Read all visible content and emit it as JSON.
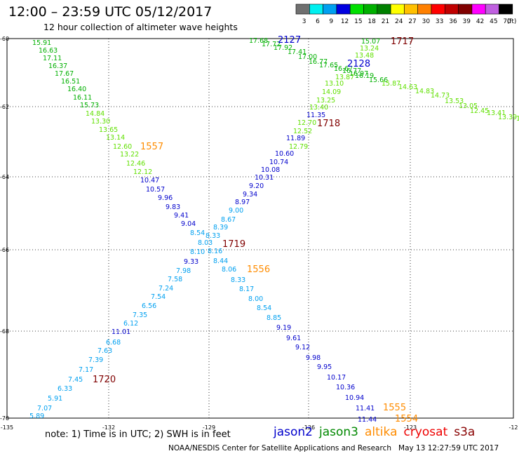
{
  "header": {
    "title": "12:00 – 23:59 UTC 05/12/2017",
    "subtitle": "12 hour collection of altimeter wave heights"
  },
  "colorscale": {
    "unit": "(ft)",
    "bins": [
      {
        "label": "3",
        "color": "#707070"
      },
      {
        "label": "6",
        "color": "#00f0f0"
      },
      {
        "label": "9",
        "color": "#00a0f0"
      },
      {
        "label": "12",
        "color": "#0000e0"
      },
      {
        "label": "15",
        "color": "#00e000"
      },
      {
        "label": "18",
        "color": "#00b000"
      },
      {
        "label": "21",
        "color": "#008000"
      },
      {
        "label": "24",
        "color": "#ffff00"
      },
      {
        "label": "27",
        "color": "#ffc000"
      },
      {
        "label": "30",
        "color": "#ff8000"
      },
      {
        "label": "33",
        "color": "#ff0000"
      },
      {
        "label": "36",
        "color": "#c00000"
      },
      {
        "label": "39",
        "color": "#800000"
      },
      {
        "label": "42",
        "color": "#ff00ff"
      },
      {
        "label": "45",
        "color": "#c060e0"
      },
      {
        "label": "70",
        "color": "#000000"
      }
    ]
  },
  "map": {
    "x_ticks": [
      "-135",
      "-132",
      "-129",
      "-126",
      "-123",
      "-12"
    ],
    "y_ticks": [
      "-60",
      "-62",
      "-64",
      "-66",
      "-68",
      "-70"
    ],
    "passes": [
      {
        "label": "2127",
        "color": "#0000cc"
      },
      {
        "label": "2128",
        "color": "#0000cc"
      },
      {
        "label": "1717",
        "color": "#800000"
      },
      {
        "label": "1718",
        "color": "#800000"
      },
      {
        "label": "1557",
        "color": "#ff8c00"
      },
      {
        "label": "1719",
        "color": "#800000"
      },
      {
        "label": "1556",
        "color": "#ff8c00"
      },
      {
        "label": "1720",
        "color": "#800000"
      },
      {
        "label": "1555",
        "color": "#ff8c00"
      },
      {
        "label": "1554",
        "color": "#ff8c00"
      }
    ],
    "values": [
      {
        "v": "15.91",
        "c": "#00b000"
      },
      {
        "v": "16.63",
        "c": "#00b000"
      },
      {
        "v": "17.11",
        "c": "#00b000"
      },
      {
        "v": "16.37",
        "c": "#00b000"
      },
      {
        "v": "17.67",
        "c": "#00b000"
      },
      {
        "v": "16.51",
        "c": "#00b000"
      },
      {
        "v": "16.40",
        "c": "#00b000"
      },
      {
        "v": "16.11",
        "c": "#00b000"
      },
      {
        "v": "15.73",
        "c": "#00b000"
      },
      {
        "v": "14.84",
        "c": "#60e000"
      },
      {
        "v": "13.30",
        "c": "#60e000"
      },
      {
        "v": "13.65",
        "c": "#60e000"
      },
      {
        "v": "13.14",
        "c": "#60e000"
      },
      {
        "v": "12.60",
        "c": "#60e000"
      },
      {
        "v": "13.22",
        "c": "#60e000"
      },
      {
        "v": "12.46",
        "c": "#60e000"
      },
      {
        "v": "12.12",
        "c": "#60e000"
      },
      {
        "v": "10.47",
        "c": "#0000cc"
      },
      {
        "v": "10.57",
        "c": "#0000cc"
      },
      {
        "v": "9.96",
        "c": "#0000cc"
      },
      {
        "v": "9.83",
        "c": "#0000cc"
      },
      {
        "v": "9.41",
        "c": "#0000cc"
      },
      {
        "v": "9.04",
        "c": "#0000cc"
      },
      {
        "v": "8.54",
        "c": "#00a0f0"
      },
      {
        "v": "8.33",
        "c": "#00a0f0"
      },
      {
        "v": "8.03",
        "c": "#00a0f0"
      },
      {
        "v": "8.10",
        "c": "#00a0f0"
      },
      {
        "v": "8.16",
        "c": "#00a0f0"
      },
      {
        "v": "8.44",
        "c": "#00a0f0"
      },
      {
        "v": "8.06",
        "c": "#00a0f0"
      },
      {
        "v": "8.33",
        "c": "#00a0f0"
      },
      {
        "v": "8.17",
        "c": "#00a0f0"
      },
      {
        "v": "8.00",
        "c": "#00a0f0"
      },
      {
        "v": "8.54",
        "c": "#00a0f0"
      },
      {
        "v": "8.85",
        "c": "#00a0f0"
      },
      {
        "v": "9.19",
        "c": "#0000cc"
      },
      {
        "v": "9.61",
        "c": "#0000cc"
      },
      {
        "v": "9.12",
        "c": "#0000cc"
      },
      {
        "v": "9.98",
        "c": "#0000cc"
      },
      {
        "v": "9.95",
        "c": "#0000cc"
      },
      {
        "v": "10.17",
        "c": "#0000cc"
      },
      {
        "v": "10.36",
        "c": "#0000cc"
      },
      {
        "v": "10.94",
        "c": "#0000cc"
      },
      {
        "v": "11.41",
        "c": "#0000cc"
      },
      {
        "v": "11.44",
        "c": "#0000cc"
      },
      {
        "v": "9.33",
        "c": "#0000cc"
      },
      {
        "v": "7.98",
        "c": "#00a0f0"
      },
      {
        "v": "7.58",
        "c": "#00a0f0"
      },
      {
        "v": "7.24",
        "c": "#00a0f0"
      },
      {
        "v": "7.54",
        "c": "#00a0f0"
      },
      {
        "v": "6.56",
        "c": "#00a0f0"
      },
      {
        "v": "7.35",
        "c": "#00a0f0"
      },
      {
        "v": "6.12",
        "c": "#00a0f0"
      },
      {
        "v": "11.01",
        "c": "#0000cc"
      },
      {
        "v": "6.68",
        "c": "#00a0f0"
      },
      {
        "v": "7.63",
        "c": "#00a0f0"
      },
      {
        "v": "7.39",
        "c": "#00a0f0"
      },
      {
        "v": "7.17",
        "c": "#00a0f0"
      },
      {
        "v": "7.45",
        "c": "#00a0f0"
      },
      {
        "v": "6.33",
        "c": "#00a0f0"
      },
      {
        "v": "5.91",
        "c": "#00a0f0"
      },
      {
        "v": "7.07",
        "c": "#00a0f0"
      },
      {
        "v": "5.89",
        "c": "#00a0f0"
      },
      {
        "v": "8.39",
        "c": "#00a0f0"
      },
      {
        "v": "8.67",
        "c": "#00a0f0"
      },
      {
        "v": "9.00",
        "c": "#00a0f0"
      },
      {
        "v": "8.97",
        "c": "#0000cc"
      },
      {
        "v": "9.34",
        "c": "#0000cc"
      },
      {
        "v": "9.20",
        "c": "#0000cc"
      },
      {
        "v": "10.31",
        "c": "#0000cc"
      },
      {
        "v": "10.08",
        "c": "#0000cc"
      },
      {
        "v": "10.74",
        "c": "#0000cc"
      },
      {
        "v": "10.60",
        "c": "#0000cc"
      },
      {
        "v": "12.79",
        "c": "#60e000"
      },
      {
        "v": "11.89",
        "c": "#0000cc"
      },
      {
        "v": "12.52",
        "c": "#60e000"
      },
      {
        "v": "12.70",
        "c": "#60e000"
      },
      {
        "v": "11.35",
        "c": "#0000cc"
      },
      {
        "v": "13.40",
        "c": "#60e000"
      },
      {
        "v": "13.25",
        "c": "#60e000"
      },
      {
        "v": "14.09",
        "c": "#60e000"
      },
      {
        "v": "13.10",
        "c": "#60e000"
      },
      {
        "v": "13.87",
        "c": "#60e000"
      },
      {
        "v": "16.19",
        "c": "#00b000"
      },
      {
        "v": "15.66",
        "c": "#00b000"
      },
      {
        "v": "15.87",
        "c": "#60e000"
      },
      {
        "v": "14.63",
        "c": "#60e000"
      },
      {
        "v": "14.83",
        "c": "#60e000"
      },
      {
        "v": "14.73",
        "c": "#60e000"
      },
      {
        "v": "13.53",
        "c": "#60e000"
      },
      {
        "v": "13.05",
        "c": "#60e000"
      },
      {
        "v": "12.45",
        "c": "#60e000"
      },
      {
        "v": "13.41",
        "c": "#60e000"
      },
      {
        "v": "13.39",
        "c": "#60e000"
      },
      {
        "v": "12.42",
        "c": "#60e000"
      },
      {
        "v": "15.07",
        "c": "#00b000"
      },
      {
        "v": "13.24",
        "c": "#60e000"
      },
      {
        "v": "13.48",
        "c": "#60e000"
      },
      {
        "v": "17.68",
        "c": "#00b000"
      },
      {
        "v": "17.72",
        "c": "#00b000"
      },
      {
        "v": "17.92",
        "c": "#00b000"
      },
      {
        "v": "17.41",
        "c": "#00b000"
      },
      {
        "v": "17.00",
        "c": "#00b000"
      },
      {
        "v": "16.77",
        "c": "#00b000"
      },
      {
        "v": "17.65",
        "c": "#00b000"
      },
      {
        "v": "16.67",
        "c": "#00b000"
      },
      {
        "v": "16.77",
        "c": "#00b000"
      },
      {
        "v": "16.97",
        "c": "#00b000"
      }
    ]
  },
  "note": "note: 1) Time is in UTC; 2) SWH is in feet",
  "legend": [
    {
      "label": "jason2",
      "color": "#0000cc"
    },
    {
      "label": "jason3",
      "color": "#008800"
    },
    {
      "label": "altika",
      "color": "#ff8c00"
    },
    {
      "label": "cryosat",
      "color": "#ee0000"
    },
    {
      "label": "s3a",
      "color": "#880000"
    }
  ],
  "footer": "NOAA/NESDIS Center for Satellite Applications and Research   May 13 12:27:59 UTC 2017"
}
